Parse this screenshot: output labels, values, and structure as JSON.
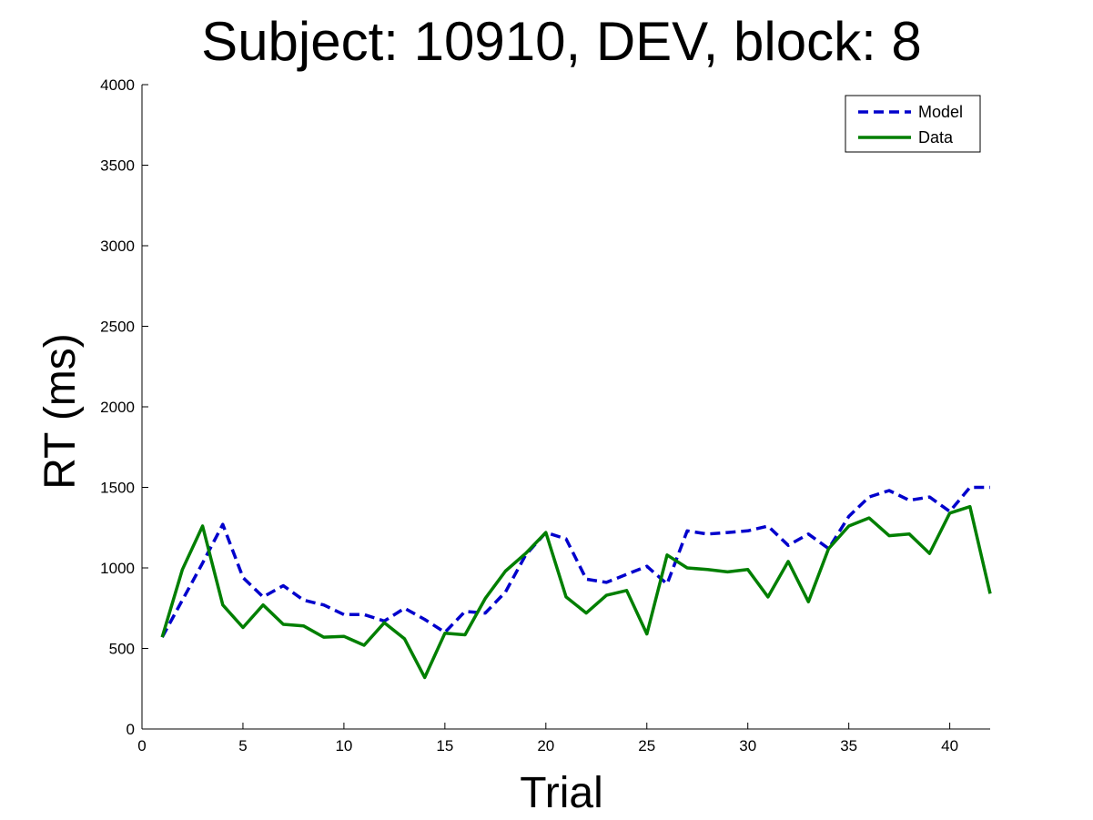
{
  "chart_data": {
    "type": "line",
    "title": "Subject: 10910, DEV, block: 8",
    "xlabel": "Trial",
    "ylabel": "RT (ms)",
    "xlim": [
      0,
      42
    ],
    "ylim": [
      0,
      4000
    ],
    "xticks": [
      0,
      5,
      10,
      15,
      20,
      25,
      30,
      35,
      40
    ],
    "yticks": [
      0,
      500,
      1000,
      1500,
      2000,
      2500,
      3000,
      3500,
      4000
    ],
    "grid": false,
    "legend_position": "top-right",
    "x": [
      1,
      2,
      3,
      4,
      5,
      6,
      7,
      8,
      9,
      10,
      11,
      12,
      13,
      14,
      15,
      16,
      17,
      18,
      19,
      20,
      21,
      22,
      23,
      24,
      25,
      26,
      27,
      28,
      29,
      30,
      31,
      32,
      33,
      34,
      35,
      36,
      37,
      38,
      39,
      40,
      41,
      42
    ],
    "series": [
      {
        "name": "Model",
        "color": "#0000cc",
        "style": "dashed",
        "values": [
          570,
          800,
          1030,
          1270,
          940,
          820,
          890,
          800,
          770,
          710,
          710,
          670,
          750,
          680,
          600,
          730,
          720,
          850,
          1080,
          1220,
          1180,
          930,
          910,
          960,
          1010,
          900,
          1230,
          1210,
          1220,
          1230,
          1260,
          1140,
          1210,
          1120,
          1320,
          1440,
          1480,
          1420,
          1440,
          1350,
          1500,
          1500
        ]
      },
      {
        "name": "Data",
        "color": "#007f00",
        "style": "solid",
        "values": [
          570,
          990,
          1260,
          770,
          630,
          770,
          650,
          640,
          570,
          575,
          520,
          660,
          560,
          320,
          595,
          585,
          810,
          980,
          1090,
          1220,
          820,
          720,
          830,
          860,
          590,
          1080,
          1000,
          990,
          975,
          990,
          820,
          1040,
          790,
          1120,
          1260,
          1310,
          1200,
          1210,
          1090,
          1340,
          1380,
          840
        ]
      }
    ]
  }
}
